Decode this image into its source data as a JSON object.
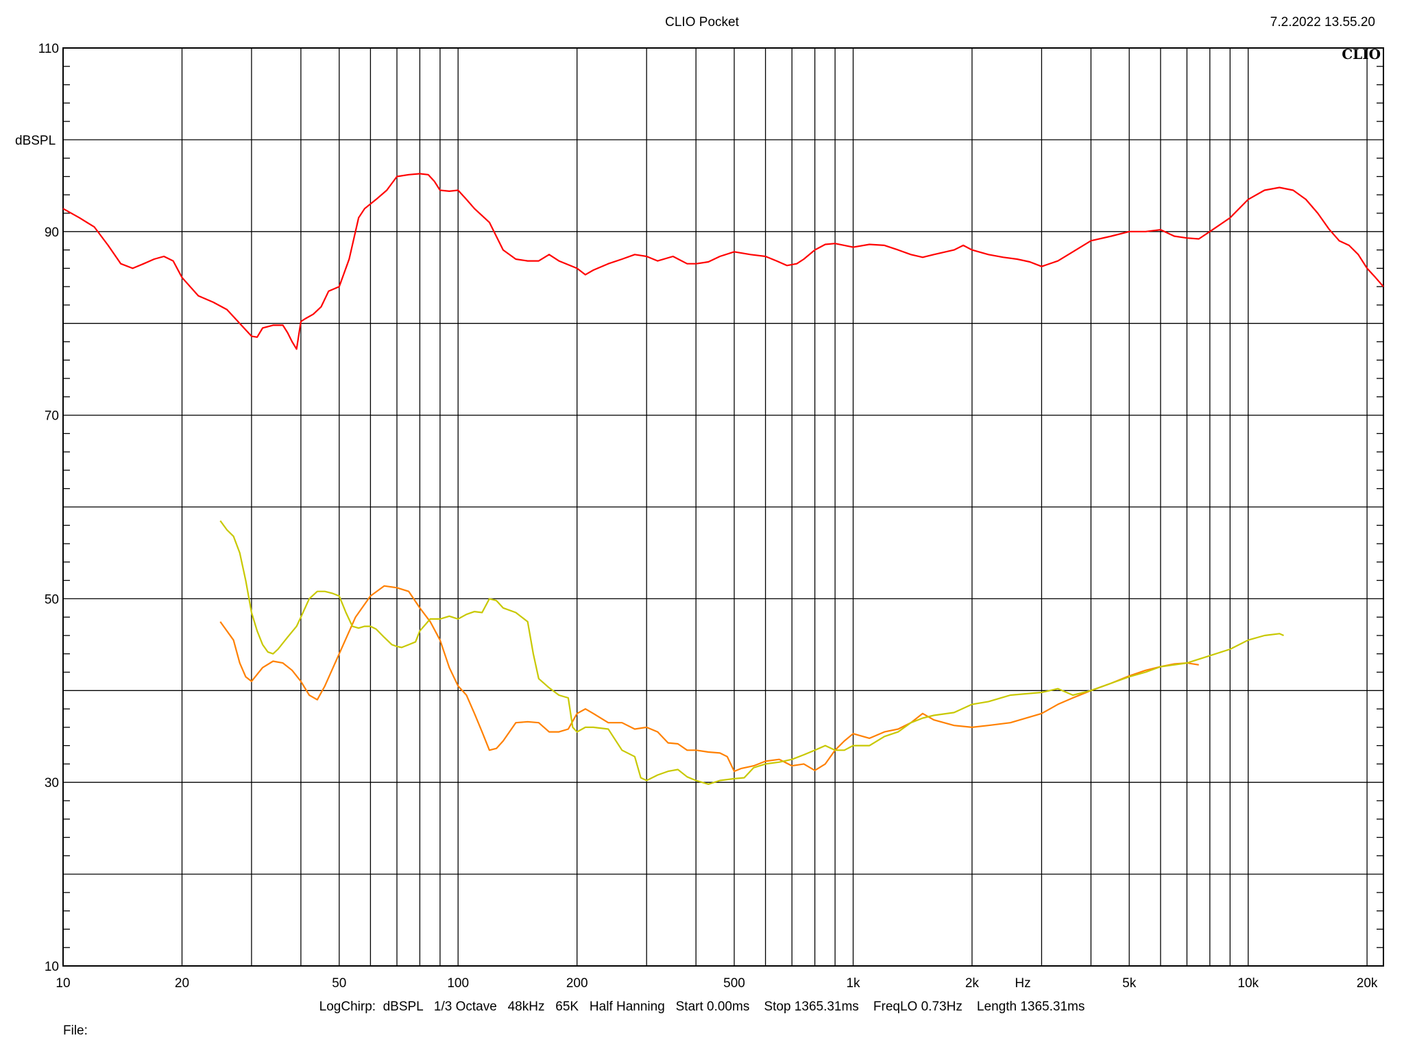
{
  "header": {
    "title": "CLIO Pocket",
    "timestamp": "7.2.2022 13.55.20",
    "brand": "CLIO"
  },
  "footer": {
    "settings": "LogChirp:  dBSPL   1/3 Octave   48kHz   65K   Half Hanning   Start 0.00ms    Stop 1365.31ms    FreqLO 0.73Hz    Length 1365.31ms",
    "file_label": "File:"
  },
  "chart_data": {
    "type": "line",
    "title": "",
    "xlabel": "Hz",
    "ylabel": "dBSPL",
    "xscale": "log",
    "xlim": [
      10,
      22000
    ],
    "ylim": [
      10,
      110
    ],
    "grid": true,
    "x_ticks": [
      {
        "value": 10,
        "label": "10"
      },
      {
        "value": 20,
        "label": "20"
      },
      {
        "value": 50,
        "label": "50"
      },
      {
        "value": 100,
        "label": "100"
      },
      {
        "value": 200,
        "label": "200"
      },
      {
        "value": 500,
        "label": "500"
      },
      {
        "value": 1000,
        "label": "1k"
      },
      {
        "value": 2000,
        "label": "2k"
      },
      {
        "value": 5000,
        "label": "5k"
      },
      {
        "value": 10000,
        "label": "10k"
      },
      {
        "value": 20000,
        "label": "20k"
      }
    ],
    "y_ticks": [
      {
        "value": 10,
        "label": "10"
      },
      {
        "value": 30,
        "label": "30"
      },
      {
        "value": 50,
        "label": "50"
      },
      {
        "value": 70,
        "label": "70"
      },
      {
        "value": 90,
        "label": "90"
      },
      {
        "value": 110,
        "label": "110"
      }
    ],
    "series": [
      {
        "color": "#ff0000",
        "points": [
          [
            10,
            92.5
          ],
          [
            11,
            91.5
          ],
          [
            12,
            90.5
          ],
          [
            13,
            88.5
          ],
          [
            14,
            86.5
          ],
          [
            15,
            86
          ],
          [
            16,
            86.5
          ],
          [
            17,
            87
          ],
          [
            18,
            87.3
          ],
          [
            19,
            86.8
          ],
          [
            20,
            85
          ],
          [
            22,
            83
          ],
          [
            24,
            82.3
          ],
          [
            26,
            81.5
          ],
          [
            28,
            80
          ],
          [
            30,
            78.6
          ],
          [
            31,
            78.5
          ],
          [
            32,
            79.5
          ],
          [
            34,
            79.8
          ],
          [
            36,
            79.8
          ],
          [
            37,
            79
          ],
          [
            38,
            78
          ],
          [
            39,
            77.2
          ],
          [
            40,
            80.2
          ],
          [
            41,
            80.5
          ],
          [
            43,
            81
          ],
          [
            45,
            81.8
          ],
          [
            47,
            83.5
          ],
          [
            50,
            84
          ],
          [
            53,
            87
          ],
          [
            56,
            91.5
          ],
          [
            58,
            92.5
          ],
          [
            62,
            93.5
          ],
          [
            66,
            94.5
          ],
          [
            70,
            96
          ],
          [
            75,
            96.2
          ],
          [
            80,
            96.3
          ],
          [
            84,
            96.2
          ],
          [
            87,
            95.5
          ],
          [
            90,
            94.5
          ],
          [
            95,
            94.4
          ],
          [
            100,
            94.5
          ],
          [
            105,
            93.5
          ],
          [
            110,
            92.5
          ],
          [
            120,
            91
          ],
          [
            130,
            88
          ],
          [
            140,
            87
          ],
          [
            150,
            86.8
          ],
          [
            160,
            86.8
          ],
          [
            170,
            87.5
          ],
          [
            180,
            86.8
          ],
          [
            200,
            86
          ],
          [
            210,
            85.3
          ],
          [
            220,
            85.8
          ],
          [
            240,
            86.5
          ],
          [
            260,
            87
          ],
          [
            280,
            87.5
          ],
          [
            300,
            87.3
          ],
          [
            320,
            86.8
          ],
          [
            350,
            87.3
          ],
          [
            380,
            86.5
          ],
          [
            400,
            86.5
          ],
          [
            430,
            86.7
          ],
          [
            460,
            87.3
          ],
          [
            500,
            87.8
          ],
          [
            550,
            87.5
          ],
          [
            600,
            87.3
          ],
          [
            640,
            86.8
          ],
          [
            680,
            86.3
          ],
          [
            720,
            86.5
          ],
          [
            750,
            87
          ],
          [
            800,
            88
          ],
          [
            850,
            88.6
          ],
          [
            900,
            88.7
          ],
          [
            950,
            88.5
          ],
          [
            1000,
            88.3
          ],
          [
            1100,
            88.6
          ],
          [
            1200,
            88.5
          ],
          [
            1300,
            88
          ],
          [
            1400,
            87.5
          ],
          [
            1500,
            87.2
          ],
          [
            1600,
            87.5
          ],
          [
            1800,
            88
          ],
          [
            1900,
            88.5
          ],
          [
            2000,
            88
          ],
          [
            2200,
            87.5
          ],
          [
            2400,
            87.2
          ],
          [
            2600,
            87
          ],
          [
            2800,
            86.7
          ],
          [
            3000,
            86.2
          ],
          [
            3300,
            86.8
          ],
          [
            3600,
            87.8
          ],
          [
            4000,
            89
          ],
          [
            4500,
            89.5
          ],
          [
            5000,
            90
          ],
          [
            5500,
            90
          ],
          [
            6000,
            90.2
          ],
          [
            6500,
            89.5
          ],
          [
            7000,
            89.3
          ],
          [
            7500,
            89.2
          ],
          [
            8000,
            90
          ],
          [
            9000,
            91.5
          ],
          [
            10000,
            93.5
          ],
          [
            11000,
            94.5
          ],
          [
            12000,
            94.8
          ],
          [
            13000,
            94.5
          ],
          [
            14000,
            93.5
          ],
          [
            15000,
            92
          ],
          [
            16000,
            90.3
          ],
          [
            17000,
            89
          ],
          [
            18000,
            88.5
          ],
          [
            19000,
            87.5
          ],
          [
            20000,
            86
          ],
          [
            21000,
            85
          ],
          [
            22000,
            84
          ]
        ]
      },
      {
        "color": "#ff8000",
        "points": [
          [
            25,
            47.5
          ],
          [
            27,
            45.5
          ],
          [
            28,
            43
          ],
          [
            29,
            41.5
          ],
          [
            30,
            41
          ],
          [
            32,
            42.5
          ],
          [
            34,
            43.2
          ],
          [
            36,
            43
          ],
          [
            38,
            42.2
          ],
          [
            40,
            41
          ],
          [
            42,
            39.5
          ],
          [
            44,
            39
          ],
          [
            46,
            40.5
          ],
          [
            50,
            44
          ],
          [
            55,
            48
          ],
          [
            60,
            50.3
          ],
          [
            65,
            51.4
          ],
          [
            70,
            51.2
          ],
          [
            75,
            50.8
          ],
          [
            80,
            49
          ],
          [
            85,
            47.5
          ],
          [
            90,
            45.5
          ],
          [
            95,
            42.5
          ],
          [
            100,
            40.5
          ],
          [
            105,
            39.5
          ],
          [
            110,
            37.5
          ],
          [
            115,
            35.5
          ],
          [
            120,
            33.5
          ],
          [
            125,
            33.7
          ],
          [
            130,
            34.5
          ],
          [
            140,
            36.5
          ],
          [
            150,
            36.6
          ],
          [
            160,
            36.5
          ],
          [
            170,
            35.5
          ],
          [
            180,
            35.5
          ],
          [
            190,
            35.8
          ],
          [
            200,
            37.5
          ],
          [
            210,
            38
          ],
          [
            220,
            37.5
          ],
          [
            240,
            36.5
          ],
          [
            260,
            36.5
          ],
          [
            280,
            35.8
          ],
          [
            300,
            36
          ],
          [
            320,
            35.5
          ],
          [
            340,
            34.3
          ],
          [
            360,
            34.2
          ],
          [
            380,
            33.5
          ],
          [
            400,
            33.5
          ],
          [
            430,
            33.3
          ],
          [
            460,
            33.2
          ],
          [
            480,
            32.8
          ],
          [
            500,
            31.2
          ],
          [
            520,
            31.5
          ],
          [
            560,
            31.8
          ],
          [
            600,
            32.3
          ],
          [
            650,
            32.5
          ],
          [
            700,
            31.8
          ],
          [
            750,
            32
          ],
          [
            800,
            31.3
          ],
          [
            850,
            32
          ],
          [
            900,
            33.5
          ],
          [
            950,
            34.5
          ],
          [
            1000,
            35.3
          ],
          [
            1100,
            34.8
          ],
          [
            1200,
            35.5
          ],
          [
            1300,
            35.8
          ],
          [
            1400,
            36.5
          ],
          [
            1500,
            37.5
          ],
          [
            1600,
            36.8
          ],
          [
            1800,
            36.2
          ],
          [
            2000,
            36
          ],
          [
            2200,
            36.2
          ],
          [
            2500,
            36.5
          ],
          [
            3000,
            37.5
          ],
          [
            3300,
            38.5
          ],
          [
            3600,
            39.2
          ],
          [
            4000,
            40
          ],
          [
            4500,
            40.8
          ],
          [
            5000,
            41.6
          ],
          [
            5500,
            42.2
          ],
          [
            6000,
            42.6
          ],
          [
            6500,
            42.9
          ],
          [
            7000,
            43
          ],
          [
            7500,
            42.8
          ]
        ]
      },
      {
        "color": "#c8c800",
        "points": [
          [
            25,
            58.5
          ],
          [
            26,
            57.5
          ],
          [
            27,
            56.8
          ],
          [
            28,
            55
          ],
          [
            29,
            52
          ],
          [
            30,
            48.5
          ],
          [
            31,
            46.5
          ],
          [
            32,
            45
          ],
          [
            33,
            44.2
          ],
          [
            34,
            44
          ],
          [
            35,
            44.5
          ],
          [
            37,
            45.8
          ],
          [
            39,
            47
          ],
          [
            40,
            48
          ],
          [
            42,
            50
          ],
          [
            44,
            50.8
          ],
          [
            46,
            50.8
          ],
          [
            48,
            50.6
          ],
          [
            50,
            50.3
          ],
          [
            52,
            48.5
          ],
          [
            54,
            47
          ],
          [
            56,
            46.8
          ],
          [
            58,
            47
          ],
          [
            60,
            47
          ],
          [
            62,
            46.7
          ],
          [
            65,
            45.8
          ],
          [
            68,
            45
          ],
          [
            70,
            44.8
          ],
          [
            72,
            44.7
          ],
          [
            75,
            45
          ],
          [
            78,
            45.3
          ],
          [
            80,
            46.5
          ],
          [
            85,
            47.8
          ],
          [
            90,
            47.8
          ],
          [
            95,
            48.1
          ],
          [
            100,
            47.8
          ],
          [
            105,
            48.3
          ],
          [
            110,
            48.6
          ],
          [
            115,
            48.5
          ],
          [
            120,
            50
          ],
          [
            125,
            49.8
          ],
          [
            130,
            49
          ],
          [
            140,
            48.5
          ],
          [
            150,
            47.5
          ],
          [
            155,
            44
          ],
          [
            160,
            41.3
          ],
          [
            170,
            40.3
          ],
          [
            180,
            39.5
          ],
          [
            190,
            39.2
          ],
          [
            195,
            36
          ],
          [
            200,
            35.5
          ],
          [
            210,
            36
          ],
          [
            220,
            36
          ],
          [
            240,
            35.8
          ],
          [
            260,
            33.5
          ],
          [
            280,
            32.8
          ],
          [
            290,
            30.5
          ],
          [
            300,
            30.2
          ],
          [
            320,
            30.8
          ],
          [
            340,
            31.2
          ],
          [
            360,
            31.4
          ],
          [
            380,
            30.6
          ],
          [
            400,
            30.2
          ],
          [
            430,
            29.8
          ],
          [
            460,
            30.2
          ],
          [
            500,
            30.4
          ],
          [
            530,
            30.5
          ],
          [
            560,
            31.6
          ],
          [
            600,
            32
          ],
          [
            650,
            32.2
          ],
          [
            700,
            32.5
          ],
          [
            750,
            33
          ],
          [
            800,
            33.5
          ],
          [
            850,
            34
          ],
          [
            900,
            33.5
          ],
          [
            950,
            33.5
          ],
          [
            1000,
            34
          ],
          [
            1100,
            34
          ],
          [
            1200,
            35
          ],
          [
            1300,
            35.5
          ],
          [
            1400,
            36.5
          ],
          [
            1500,
            37
          ],
          [
            1600,
            37.3
          ],
          [
            1800,
            37.6
          ],
          [
            2000,
            38.5
          ],
          [
            2200,
            38.8
          ],
          [
            2500,
            39.5
          ],
          [
            3000,
            39.8
          ],
          [
            3300,
            40.2
          ],
          [
            3600,
            39.5
          ],
          [
            4000,
            40
          ],
          [
            4500,
            40.8
          ],
          [
            5000,
            41.5
          ],
          [
            5500,
            42
          ],
          [
            6000,
            42.6
          ],
          [
            7000,
            43
          ],
          [
            8000,
            43.8
          ],
          [
            9000,
            44.5
          ],
          [
            10000,
            45.5
          ],
          [
            11000,
            46
          ],
          [
            12000,
            46.2
          ],
          [
            12300,
            46
          ]
        ]
      }
    ]
  }
}
